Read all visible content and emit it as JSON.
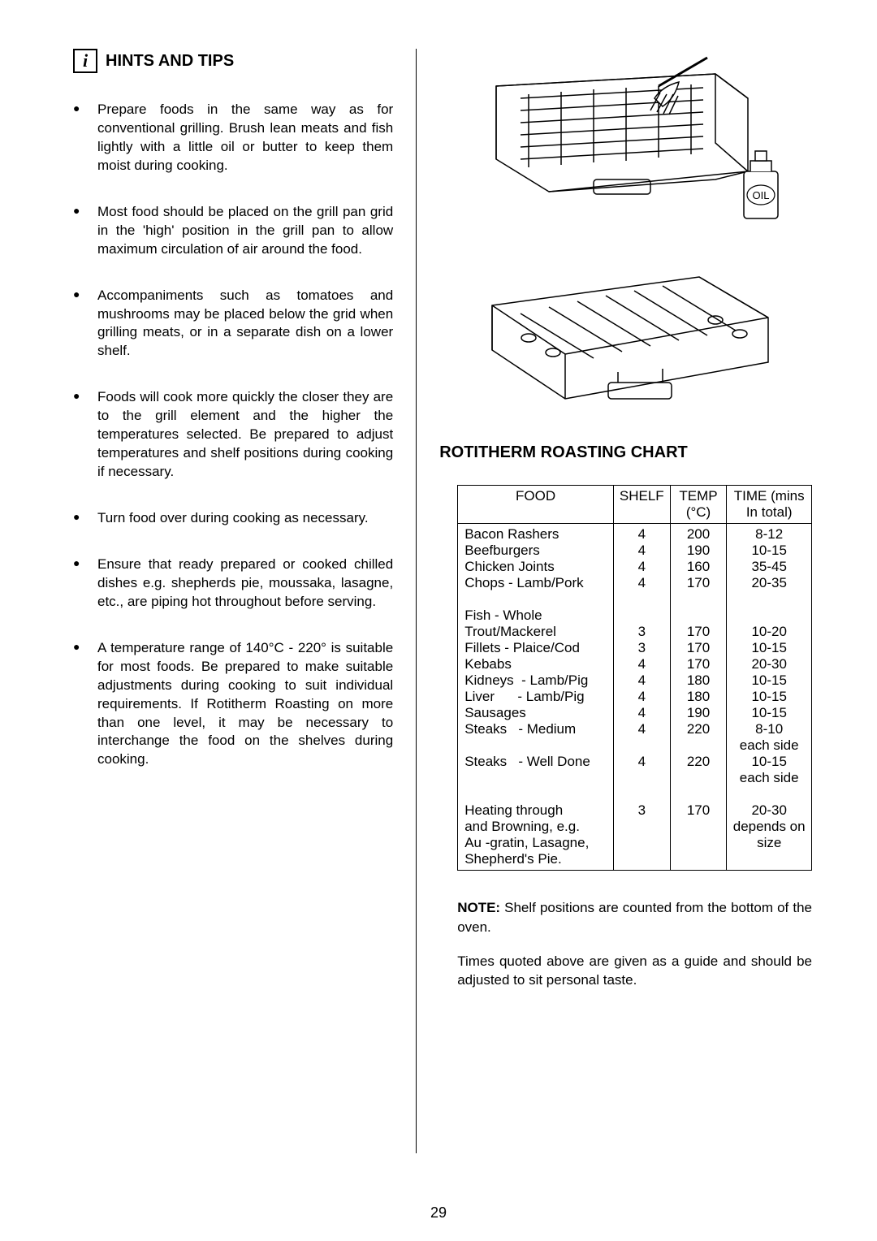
{
  "header": {
    "info_glyph": "i",
    "title": "HINTS AND TIPS"
  },
  "tips": [
    "Prepare foods in the same way as for conventional grilling.  Brush lean meats and fish lightly with a little oil or butter to keep them moist during cooking.",
    "Most food should be placed on the grill pan grid in the 'high' position in the grill pan to allow maximum circulation of air around the food.",
    "Accompaniments such as tomatoes and mushrooms may be placed below the grid when grilling meats, or in a separate dish on a lower shelf.",
    "Foods will cook more quickly the closer they are to the grill element and the higher the temperatures selected.  Be prepared to adjust temperatures and shelf positions during cooking if necessary.",
    "Turn food over during cooking as necessary.",
    "Ensure that ready prepared or cooked chilled dishes e.g. shepherds pie, moussaka, lasagne, etc., are piping hot throughout before serving.",
    "A temperature range of 140°C - 220° is suitable for most foods.  Be prepared to make suitable adjustments during cooking to suit individual requirements. If Rotitherm Roasting on more than one level, it may be necessary to interchange the food on the shelves during cooking."
  ],
  "chart": {
    "title": "ROTITHERM ROASTING CHART",
    "headers": {
      "food": "FOOD",
      "shelf": "SHELF",
      "temp_top": "TEMP",
      "temp_bot": "(°C)",
      "time_top": "TIME (mins",
      "time_bot": "In total)"
    },
    "groups": [
      {
        "rows": [
          {
            "food": "Bacon Rashers",
            "shelf": "4",
            "temp": "200",
            "time": "8-12"
          },
          {
            "food": "Beefburgers",
            "shelf": "4",
            "temp": "190",
            "time": "10-15"
          },
          {
            "food": "Chicken Joints",
            "shelf": "4",
            "temp": "160",
            "time": "35-45"
          },
          {
            "food": "Chops - Lamb/Pork",
            "shelf": "4",
            "temp": "170",
            "time": "20-35"
          }
        ]
      },
      {
        "header": "Fish - Whole",
        "rows": [
          {
            "food": "Trout/Mackerel",
            "shelf": "3",
            "temp": "170",
            "time": "10-20"
          },
          {
            "food": "Fillets - Plaice/Cod",
            "shelf": "3",
            "temp": "170",
            "time": "10-15"
          },
          {
            "food": "Kebabs",
            "shelf": "4",
            "temp": "170",
            "time": "20-30"
          },
          {
            "food": "Kidneys  - Lamb/Pig",
            "shelf": "4",
            "temp": "180",
            "time": "10-15"
          },
          {
            "food": "Liver      - Lamb/Pig",
            "shelf": "4",
            "temp": "180",
            "time": "10-15"
          },
          {
            "food": "Sausages",
            "shelf": "4",
            "temp": "190",
            "time": "10-15"
          },
          {
            "food": "Steaks   - Medium",
            "shelf": "4",
            "temp": "220",
            "time": "8-10\neach side"
          },
          {
            "food": "Steaks   - Well Done",
            "shelf": "4",
            "temp": "220",
            "time": "10-15\neach side"
          }
        ]
      },
      {
        "rows": [
          {
            "food": "Heating through\nand Browning, e.g.\nAu -gratin, Lasagne,\nShepherd's Pie.",
            "shelf": "3",
            "temp": "170",
            "time": "20-30\ndepends on\nsize"
          }
        ]
      }
    ]
  },
  "notes": {
    "note_label": "NOTE:",
    "note1_rest": "  Shelf positions are counted from the bottom of the oven.",
    "note2": "Times quoted above are given as a guide and should be adjusted to sit personal taste."
  },
  "page_number": "29",
  "oil_label": "OIL"
}
